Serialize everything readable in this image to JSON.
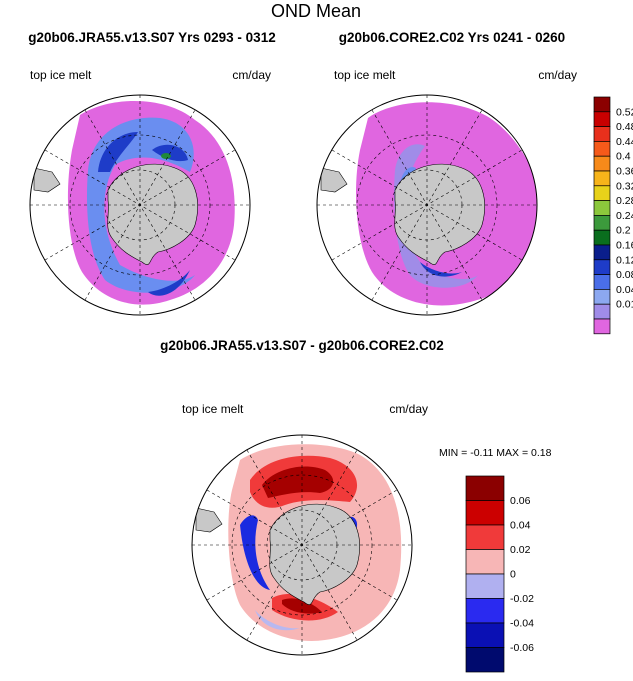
{
  "chart_data": {
    "type": "heatmap",
    "title": "OND Mean",
    "projection": "south polar stereographic",
    "panels": [
      {
        "title": "g20b06.JRA55.v13.S07  Yrs 0293 - 0312",
        "left_label": "top ice melt",
        "right_label": "cm/day",
        "field": "mean top ice melt rate",
        "colors": {
          "low": "#e066e0",
          "mid": "#6a8ef0",
          "high": "#1e3cc8",
          "peak": "#1f8a3a"
        }
      },
      {
        "title": "g20b06.CORE2.C02  Yrs 0241 - 0260",
        "left_label": "top ice melt",
        "right_label": "cm/day",
        "field": "mean top ice melt rate",
        "colors": {
          "low": "#e066e0",
          "mid": "#a08ce8",
          "high": "#6a8ef0",
          "peak": "#1e3cc8"
        }
      },
      {
        "title": "g20b06.JRA55.v13.S07 - g20b06.CORE2.C02",
        "left_label": "top ice melt",
        "right_label": "cm/day",
        "field": "difference in top ice melt rate",
        "min_text": "MIN =  -0.11 MAX =   0.18",
        "min": -0.11,
        "max": 0.18,
        "colors": {
          "low": "#f7b6b6",
          "mid": "#f03a3a",
          "high": "#a50000",
          "neg": "#1a2ae0",
          "neg_low": "#b8b8f0"
        }
      }
    ],
    "colorbar_main": {
      "labels": [
        "0.52",
        "0.48",
        "0.44",
        "0.4",
        "0.36",
        "0.32",
        "0.28",
        "0.24",
        "0.2",
        "0.16",
        "0.12",
        "0.08",
        "0.04",
        "0.01"
      ],
      "colors": [
        "#8b0000",
        "#c80000",
        "#e8301c",
        "#f55a1a",
        "#f78a1a",
        "#f7b41a",
        "#e8d21a",
        "#8cc83c",
        "#3c9a3c",
        "#0a6e1e",
        "#0a1e8c",
        "#1e3cc8",
        "#4a6ee8",
        "#8ca8f0",
        "#a08ce8",
        "#e066e0"
      ]
    },
    "colorbar_diff": {
      "labels": [
        "0.06",
        "0.04",
        "0.02",
        "0",
        "-0.02",
        "-0.04",
        "-0.06"
      ],
      "colors": [
        "#8b0000",
        "#cc0000",
        "#f03a3a",
        "#f7b6b6",
        "#b0b0f0",
        "#2a2af0",
        "#0a10b4",
        "#000a6e"
      ]
    }
  }
}
